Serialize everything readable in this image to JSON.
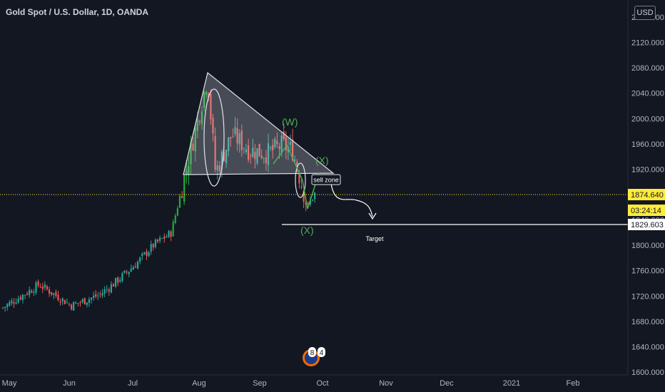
{
  "header": {
    "title": "Gold Spot / U.S. Dollar, 1D, OANDA",
    "currency_button": "USD"
  },
  "price_axis": {
    "ticks": [
      "1600.000",
      "1640.000",
      "1680.000",
      "1720.000",
      "1760.000",
      "1800.000",
      "1840.000",
      "1880.000",
      "1920.000",
      "1960.000",
      "2000.000",
      "2040.000",
      "2080.000",
      "2120.000",
      "2160.000"
    ],
    "labels": {
      "last_price": "1874.640",
      "countdown": "03:24:14",
      "target_level": "1829.603"
    },
    "colors": {
      "last_price_bg": "#ffeb3b",
      "target_bg": "#ffffff"
    }
  },
  "time_axis": {
    "ticks": [
      "May",
      "Jun",
      "Jul",
      "Aug",
      "Sep",
      "Oct",
      "Nov",
      "Dec",
      "2021",
      "Feb"
    ]
  },
  "annotations": {
    "wave_w": "(W)",
    "wave_x_upper": "(X)",
    "wave_x_lower": "(X)",
    "sell_zone": "sell zone",
    "target": "Target",
    "event_badge_1": "8",
    "event_badge_2": "4"
  },
  "chart_data": {
    "type": "candlestick",
    "symbol": "Gold Spot / U.S. Dollar",
    "interval": "1D",
    "source": "OANDA",
    "currency": "USD",
    "ylim": [
      1600,
      2160
    ],
    "xlim": [
      "May",
      "Feb"
    ],
    "grid": false,
    "colors": {
      "up": "#26a69a",
      "down": "#ef5350",
      "up_bright": "#22ab3a",
      "annotation_green": "#4caf50",
      "triangle_fill": "#d1d4dc"
    },
    "last_price": 1874.64,
    "target_price": 1829.603,
    "approx_path": [
      {
        "t": "May",
        "price": 1700
      },
      {
        "t": "mid-May",
        "price": 1735
      },
      {
        "t": "Jun",
        "price": 1705
      },
      {
        "t": "mid-Jun",
        "price": 1730
      },
      {
        "t": "Jul",
        "price": 1775
      },
      {
        "t": "mid-Jul",
        "price": 1810
      },
      {
        "t": "late-Jul",
        "price": 1900
      },
      {
        "t": "early-Aug",
        "price": 2070
      },
      {
        "t": "mid-Aug",
        "price": 1915
      },
      {
        "t": "late-Aug",
        "price": 1975
      },
      {
        "t": "Sep",
        "price": 1950
      },
      {
        "t": "mid-Sep",
        "price": 1960
      },
      {
        "t": "late-Sep",
        "price": 1855
      },
      {
        "t": "Oct",
        "price": 1885
      }
    ]
  }
}
